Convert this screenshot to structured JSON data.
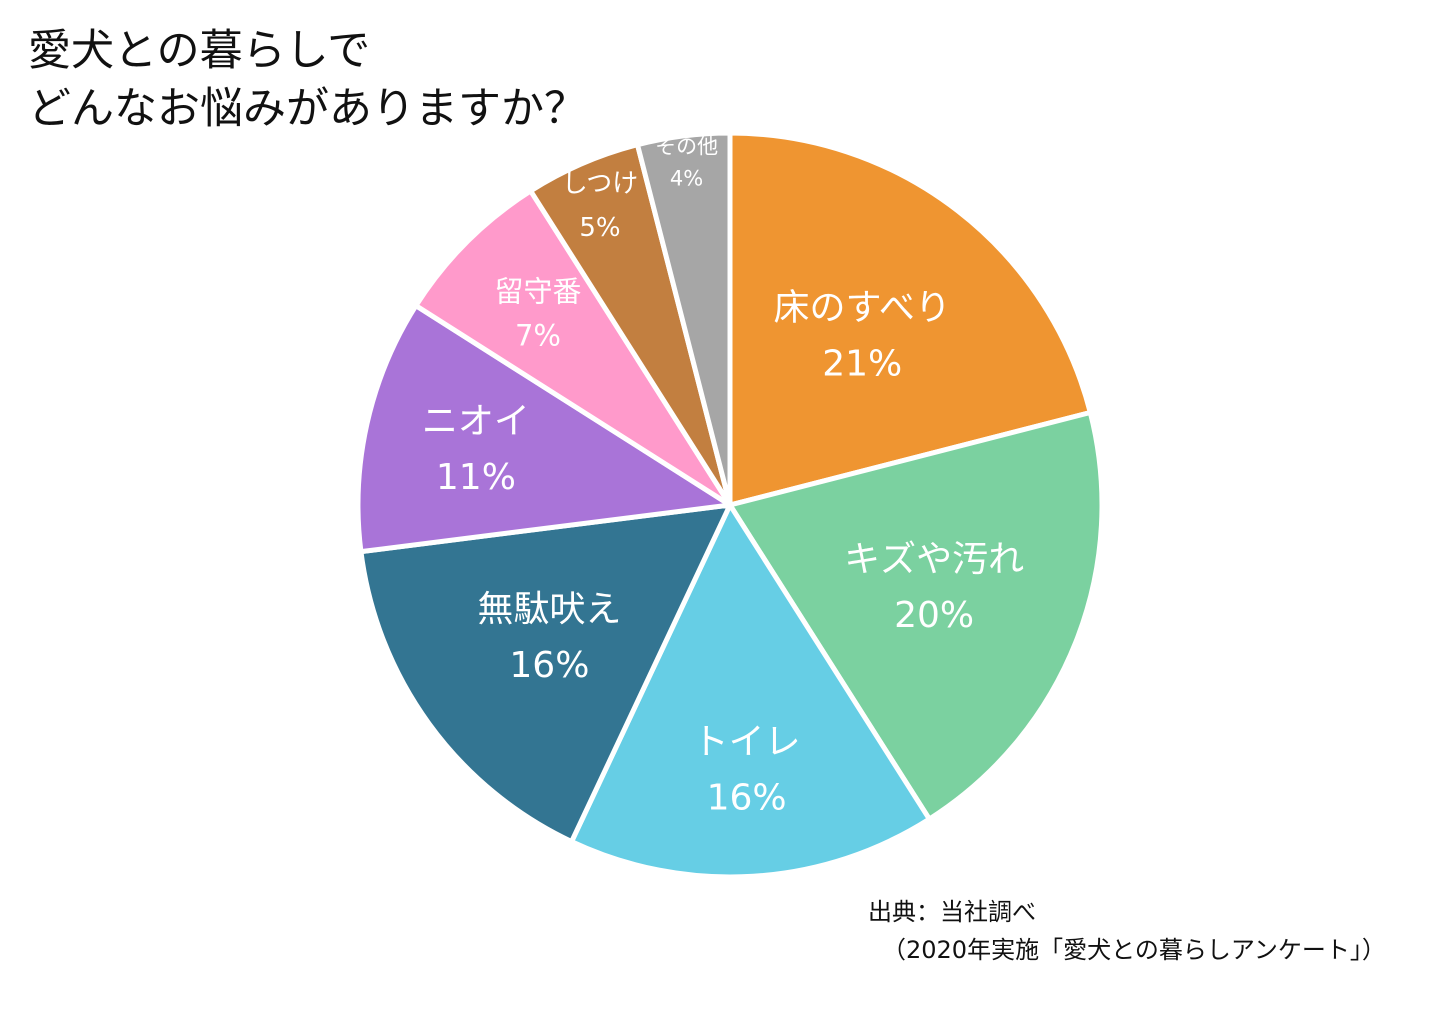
{
  "title": {
    "line1": "愛犬との暮らしで",
    "line2": "どんなお悩みがありますか？"
  },
  "source": {
    "line1": "出典：当社調べ",
    "line2": "（2020年実施「愛犬との暮らしアンケート」）"
  },
  "chart_data": {
    "type": "pie",
    "title": "愛犬との暮らしでどんなお悩みがありますか？",
    "categories": [
      "床のすべり",
      "キズや汚れ",
      "トイレ",
      "無駄吠え",
      "ニオイ",
      "留守番",
      "しつけ",
      "その他"
    ],
    "values": [
      21,
      20,
      16,
      16,
      11,
      7,
      5,
      4
    ],
    "unit": "%",
    "labels": [
      "21%",
      "20%",
      "16%",
      "16%",
      "11%",
      "7%",
      "5%",
      "4%"
    ],
    "start_angle": "12 o'clock",
    "direction": "clockwise",
    "colors": [
      "#EF9531",
      "#7BD1A0",
      "#66CEE5",
      "#337592",
      "#A974D8",
      "#FF9ACB",
      "#C27F40",
      "#A6A6A6"
    ],
    "label_color": "#ffffff",
    "separator_color": "#ffffff"
  }
}
